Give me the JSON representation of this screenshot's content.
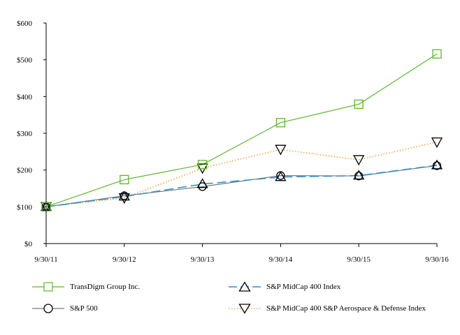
{
  "chart_data": {
    "type": "line",
    "title": "",
    "xlabel": "",
    "ylabel": "",
    "categories": [
      "9/30/11",
      "9/30/12",
      "9/30/13",
      "9/30/14",
      "9/30/15",
      "9/30/16"
    ],
    "ylim": [
      0,
      600
    ],
    "yticks": [
      0,
      100,
      200,
      300,
      400,
      500,
      600
    ],
    "ytick_labels": [
      "$0",
      "$100",
      "$200",
      "$300",
      "$400",
      "$500",
      "$600"
    ],
    "grid": false,
    "legend_position": "bottom",
    "series": [
      {
        "name": "TransDigm Group Inc.",
        "color": "#5ab82a",
        "marker": "square",
        "dash": "solid",
        "values": [
          100,
          174,
          215,
          329,
          379,
          516
        ]
      },
      {
        "name": "S&P MidCap 400 Index",
        "color": "#2a8fcc",
        "marker": "triangle-up",
        "dash": "long-dash",
        "values": [
          100,
          128,
          162,
          181,
          185,
          213
        ]
      },
      {
        "name": "S&P 500",
        "color": "#7a7a7a",
        "marker": "circle",
        "dash": "solid",
        "values": [
          100,
          130,
          155,
          185,
          184,
          212
        ]
      },
      {
        "name": "S&P MidCap 400 S&P Aerospace & Defense Index",
        "color": "#e69a26",
        "marker": "triangle-down",
        "dash": "dotted",
        "values": [
          100,
          124,
          205,
          256,
          228,
          276
        ]
      }
    ]
  }
}
